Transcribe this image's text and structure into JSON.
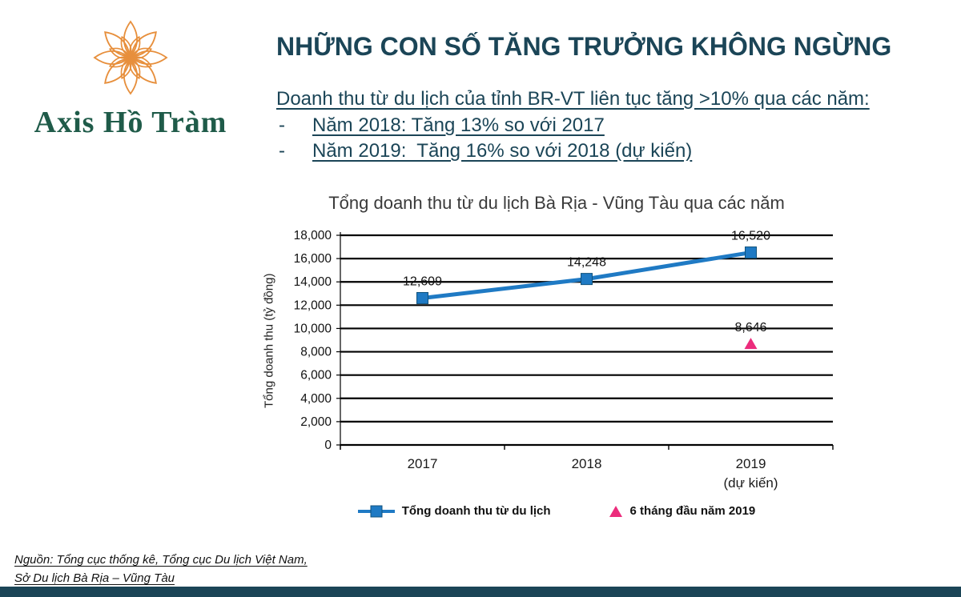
{
  "slide": {
    "logo": {
      "brand": "Axis Hồ Tràm"
    },
    "title": "NHỮNG CON SỐ TĂNG TRƯỞNG KHÔNG NGỪNG",
    "intro": "Doanh thu từ du lịch của tỉnh BR-VT liên tục tăng >10% qua các năm:",
    "bullet_marker": "-",
    "bullets": [
      "Năm 2018: Tăng 13% so với 2017",
      "Năm 2019:  Tăng 16% so với 2018 (dự kiến)"
    ],
    "source_line1": "Nguồn: Tổng cục thống kê, Tổng cục Du lịch Việt Nam,",
    "source_line2": "Sở Du lịch Bà Rịa – Vũng Tàu"
  },
  "colors": {
    "accent_teal": "#1B4557",
    "brand_green": "#1F5B49",
    "brand_orange": "#E78F3C",
    "line_blue": "#1F7AC4",
    "marker_pink": "#EC2C7C",
    "footer_bar": "#1B4557"
  },
  "chart_data": {
    "type": "line",
    "title": "Tổng doanh thu từ du lịch Bà Rịa - Vũng Tàu qua các năm",
    "ylabel": "Tổng doanh thu (tỷ đồng)",
    "xlabel": "",
    "categories": [
      "2017",
      "2018",
      "2019"
    ],
    "category_notes": [
      "",
      "",
      "(dự kiến)"
    ],
    "ylim": [
      0,
      18000
    ],
    "ytick_step": 2000,
    "grid": true,
    "legend_position": "bottom",
    "series": [
      {
        "name": "Tổng doanh thu từ du lịch",
        "line": true,
        "marker": "square",
        "color": "#1F7AC4",
        "values": [
          12609,
          14248,
          16520
        ]
      },
      {
        "name": "6 tháng đầu năm 2019",
        "line": false,
        "marker": "triangle",
        "color": "#EC2C7C",
        "values": [
          null,
          null,
          8646
        ]
      }
    ]
  }
}
